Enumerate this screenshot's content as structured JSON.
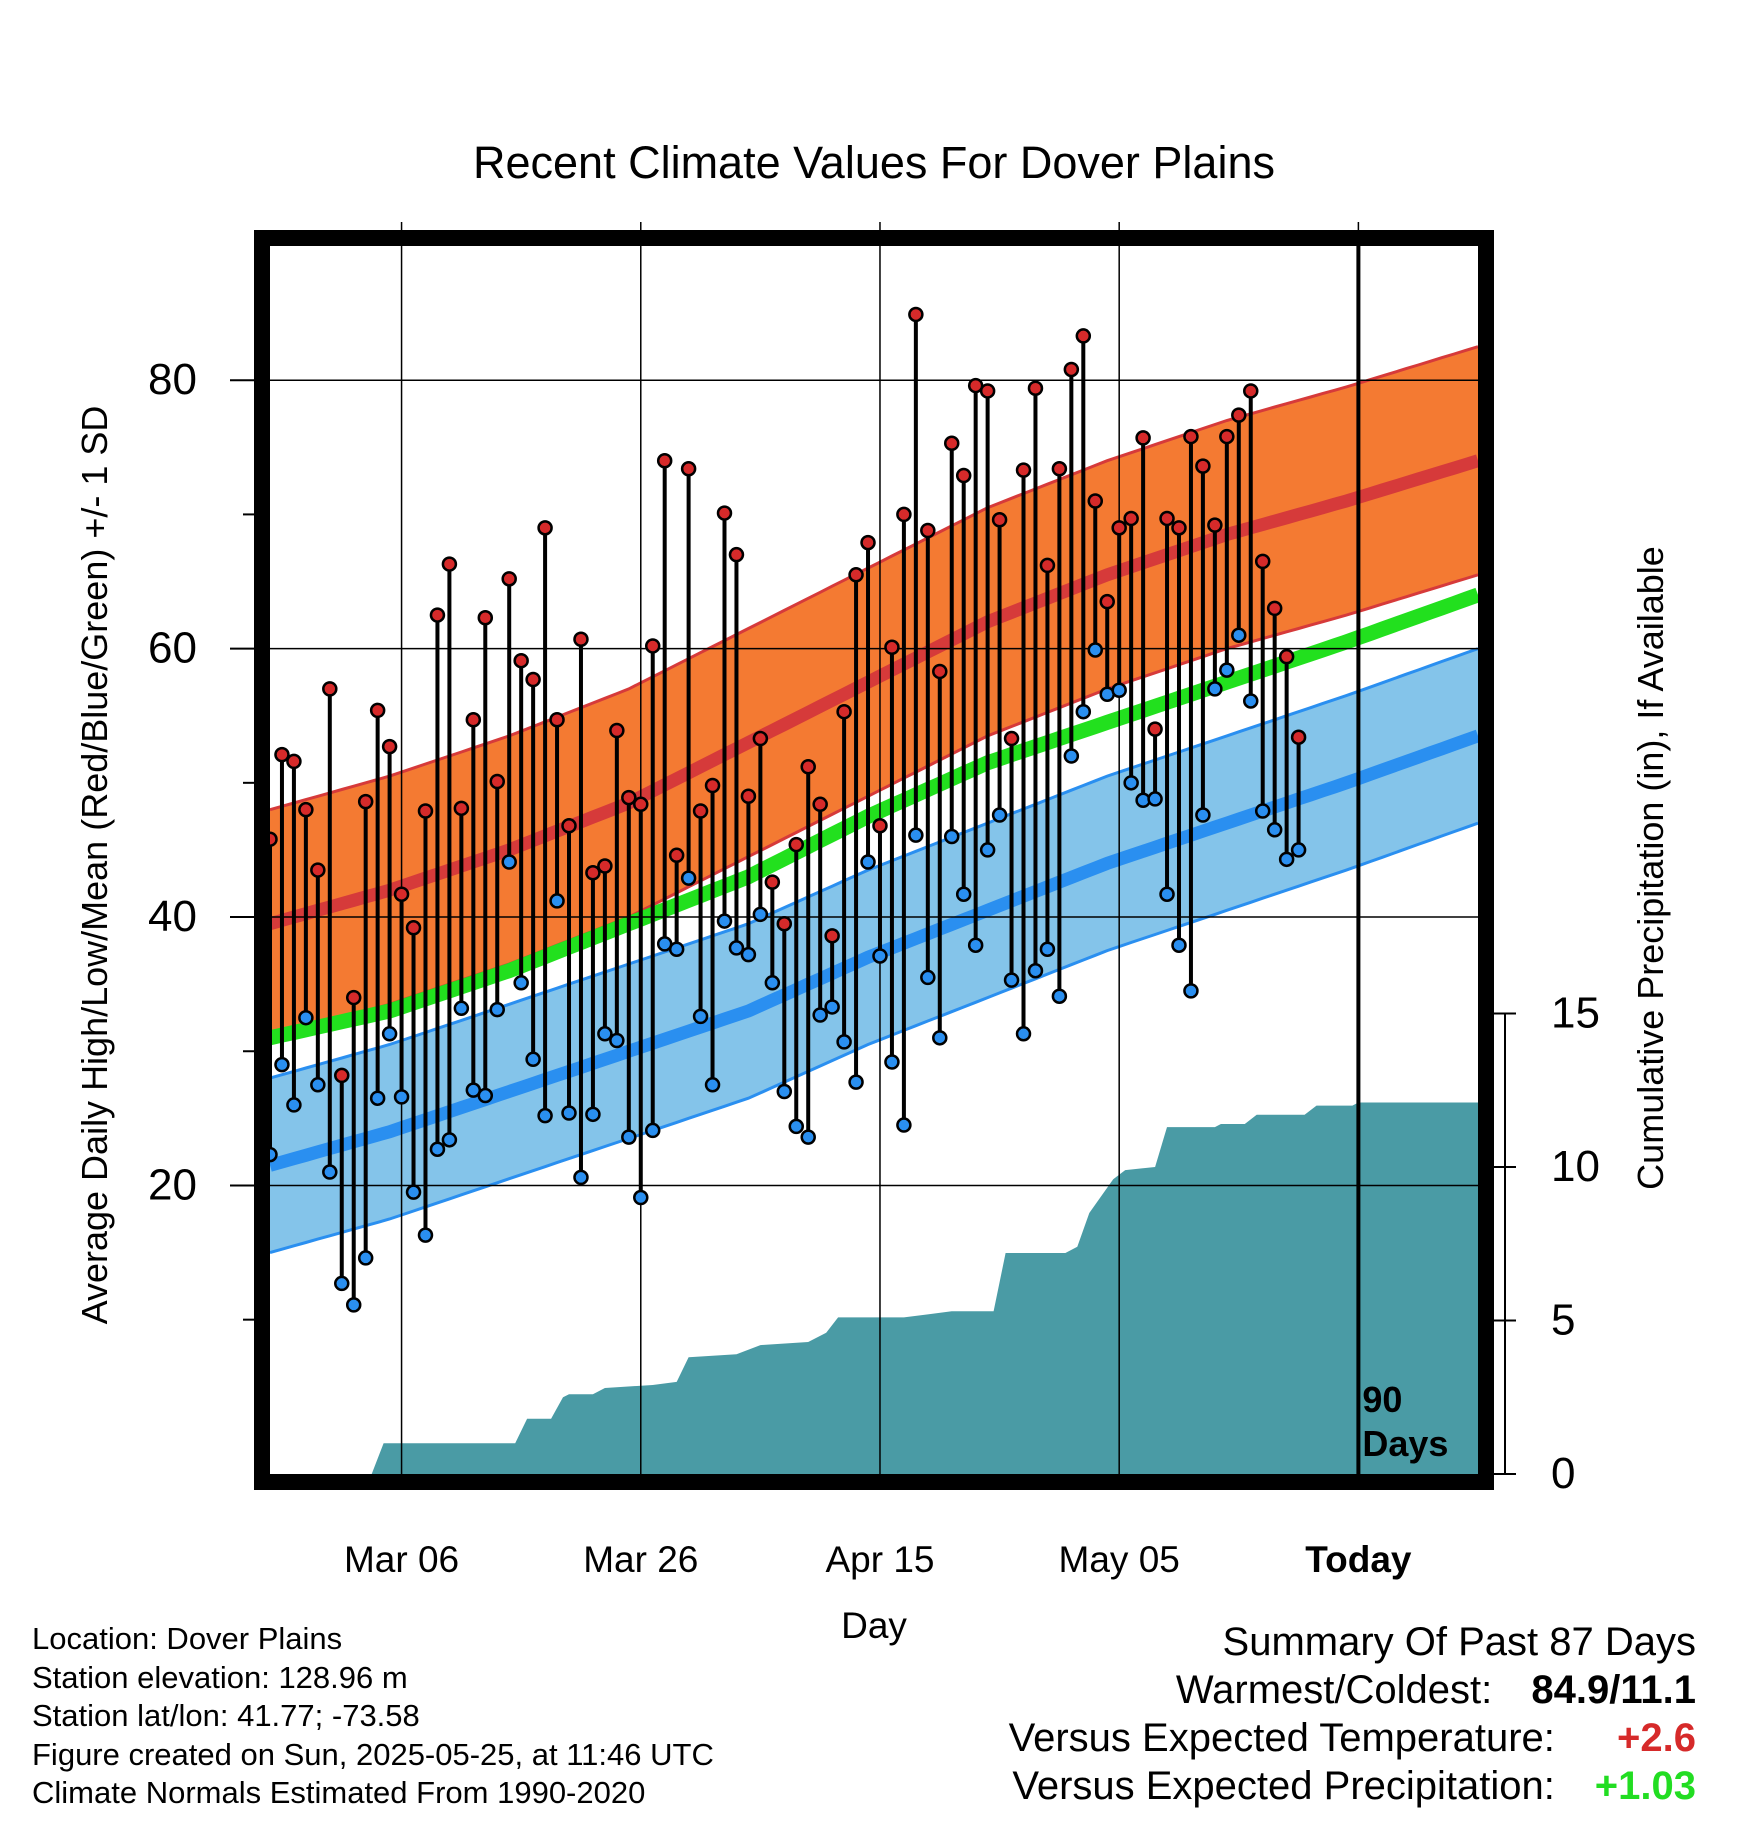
{
  "title": "Recent Climate Values For Dover Plains",
  "colors": {
    "high_band": "#f47a32",
    "high_mean": "#d63a3a",
    "high_edge": "#d63a3a",
    "low_band": "#84c4ea",
    "low_mean": "#2a8ff0",
    "low_edge": "#2a8ff0",
    "normal_mean": "#22e01e",
    "precip": "#4a9ba5",
    "high_dot": "#d62a2a",
    "low_dot": "#2a8ff0",
    "warm_text": "#d62a2a",
    "precip_text": "#22dd22"
  },
  "info": {
    "location": "Location: Dover Plains",
    "elevation": "Station elevation: 128.96 m",
    "latlon": "Station lat/lon: 41.77; -73.58",
    "created": "Figure created on Sun, 2025-05-25, at 11:46 UTC",
    "normals": "Climate Normals Estimated From 1990-2020"
  },
  "summary": {
    "heading": "Summary Of Past 87 Days",
    "warmest_label": "Warmest/Coldest:",
    "warmest_value": "84.9/11.1",
    "temp_label": "Versus Expected Temperature:",
    "temp_value": "+2.6",
    "precip_label": "Versus Expected Precipitation:",
    "precip_value": "+1.03"
  },
  "chart_data": {
    "type": "line",
    "xlabel": "Day",
    "ylabel": "Average Daily High/Low/Mean (Red/Blue/Green) +/- 1 SD",
    "y2label": "Cumulative Precipitation (in), If Available",
    "x_range_days": [
      0,
      101
    ],
    "x_ticks": [
      {
        "day": 11,
        "label": "Mar 06"
      },
      {
        "day": 31,
        "label": "Mar 26"
      },
      {
        "day": 51,
        "label": "Apr 15"
      },
      {
        "day": 71,
        "label": "May 05"
      },
      {
        "day": 91,
        "label": "Today"
      }
    ],
    "today_day": 91,
    "today_annotation": [
      "90",
      "Days"
    ],
    "ylim": [
      -1.5,
      90
    ],
    "y_ticks": [
      20,
      40,
      60,
      80
    ],
    "y2lim": [
      0,
      40
    ],
    "y2_ticks": [
      0,
      5,
      10,
      15
    ],
    "normal_day": [
      0,
      10,
      20,
      30,
      40,
      50,
      60,
      70,
      80,
      90,
      101
    ],
    "normal_high_mean": [
      39.5,
      42,
      45,
      48.5,
      53,
      57.5,
      62,
      65.5,
      68.5,
      71,
      74
    ],
    "normal_high_sd": 8.5,
    "normal_low_mean": [
      21.5,
      24,
      27,
      30,
      33,
      37,
      40.5,
      44,
      47,
      50,
      53.5
    ],
    "normal_low_sd": 6.5,
    "normal_mean": [
      31,
      33,
      36,
      39.5,
      43,
      47.5,
      51.5,
      54.5,
      57.5,
      60.5,
      64
    ],
    "daily_high": [
      45.8,
      52.1,
      51.6,
      48.0,
      43.5,
      57.0,
      28.2,
      34.0,
      48.6,
      55.4,
      52.7,
      41.7,
      39.2,
      47.9,
      62.5,
      66.3,
      48.1,
      54.7,
      62.3,
      50.1,
      65.2,
      59.1,
      57.7,
      69.0,
      54.7,
      46.8,
      60.7,
      43.3,
      43.8,
      53.9,
      48.9,
      48.4,
      60.2,
      74.0,
      44.6,
      73.4,
      47.9,
      49.8,
      70.1,
      67.0,
      49.0,
      53.3,
      42.6,
      39.5,
      45.4,
      51.2,
      48.4,
      38.6,
      55.3,
      65.5,
      67.9,
      46.8,
      60.1,
      70.0,
      84.9,
      68.8,
      58.3,
      75.3,
      72.9,
      79.6,
      79.2,
      69.6,
      53.3,
      73.3,
      79.4,
      66.2,
      73.4,
      80.8,
      83.3,
      71.0,
      63.5,
      69.0,
      69.7,
      75.7,
      54.0,
      69.7,
      69.0,
      75.8,
      73.6,
      69.2,
      75.8,
      77.4,
      79.2,
      66.5,
      63.0,
      59.4,
      53.4
    ],
    "daily_low": [
      22.3,
      29.0,
      26.0,
      32.5,
      27.5,
      21.0,
      12.7,
      11.1,
      14.6,
      26.5,
      31.3,
      26.6,
      19.5,
      16.3,
      22.7,
      23.4,
      33.2,
      27.1,
      26.7,
      33.1,
      44.1,
      35.1,
      29.4,
      25.2,
      41.2,
      25.4,
      20.6,
      25.3,
      31.3,
      30.8,
      23.6,
      19.1,
      24.1,
      38.0,
      37.6,
      42.9,
      32.6,
      27.5,
      39.7,
      37.7,
      37.2,
      40.2,
      35.1,
      27.0,
      24.4,
      23.6,
      32.7,
      33.3,
      30.7,
      27.7,
      44.1,
      37.1,
      29.2,
      24.5,
      46.1,
      35.5,
      31.0,
      46.0,
      41.7,
      37.9,
      45.0,
      47.6,
      35.3,
      31.3,
      36.0,
      37.6,
      34.1,
      52.0,
      55.3,
      59.9,
      56.6,
      56.9,
      50.0,
      48.7,
      48.8,
      41.7,
      37.9,
      34.5,
      47.6,
      57.0,
      58.4,
      61.0,
      56.1,
      47.9,
      46.5,
      44.3,
      45.0
    ],
    "precip_cumulative": [
      {
        "day": 0,
        "value": 0
      },
      {
        "day": 8.5,
        "value": 0
      },
      {
        "day": 9.5,
        "value": 1.0
      },
      {
        "day": 20.5,
        "value": 1.0
      },
      {
        "day": 21.5,
        "value": 1.8
      },
      {
        "day": 23.5,
        "value": 1.8
      },
      {
        "day": 24.5,
        "value": 2.5
      },
      {
        "day": 25,
        "value": 2.6
      },
      {
        "day": 27,
        "value": 2.6
      },
      {
        "day": 28,
        "value": 2.8
      },
      {
        "day": 32,
        "value": 2.9
      },
      {
        "day": 34,
        "value": 3.0
      },
      {
        "day": 35,
        "value": 3.8
      },
      {
        "day": 39,
        "value": 3.9
      },
      {
        "day": 41,
        "value": 4.2
      },
      {
        "day": 45,
        "value": 4.3
      },
      {
        "day": 46.5,
        "value": 4.6
      },
      {
        "day": 47.5,
        "value": 5.1
      },
      {
        "day": 53,
        "value": 5.1
      },
      {
        "day": 55,
        "value": 5.2
      },
      {
        "day": 57,
        "value": 5.3
      },
      {
        "day": 60.5,
        "value": 5.3
      },
      {
        "day": 61.5,
        "value": 7.2
      },
      {
        "day": 66.5,
        "value": 7.2
      },
      {
        "day": 67.5,
        "value": 7.4
      },
      {
        "day": 68.5,
        "value": 8.5
      },
      {
        "day": 70.5,
        "value": 9.6
      },
      {
        "day": 71.5,
        "value": 9.9
      },
      {
        "day": 74,
        "value": 10.0
      },
      {
        "day": 75,
        "value": 11.3
      },
      {
        "day": 79,
        "value": 11.3
      },
      {
        "day": 79.5,
        "value": 11.4
      },
      {
        "day": 81.5,
        "value": 11.4
      },
      {
        "day": 82.5,
        "value": 11.7
      },
      {
        "day": 86.5,
        "value": 11.7
      },
      {
        "day": 87.5,
        "value": 12.0
      },
      {
        "day": 90.5,
        "value": 12.0
      },
      {
        "day": 91,
        "value": 12.1
      },
      {
        "day": 101,
        "value": 12.1
      }
    ]
  }
}
